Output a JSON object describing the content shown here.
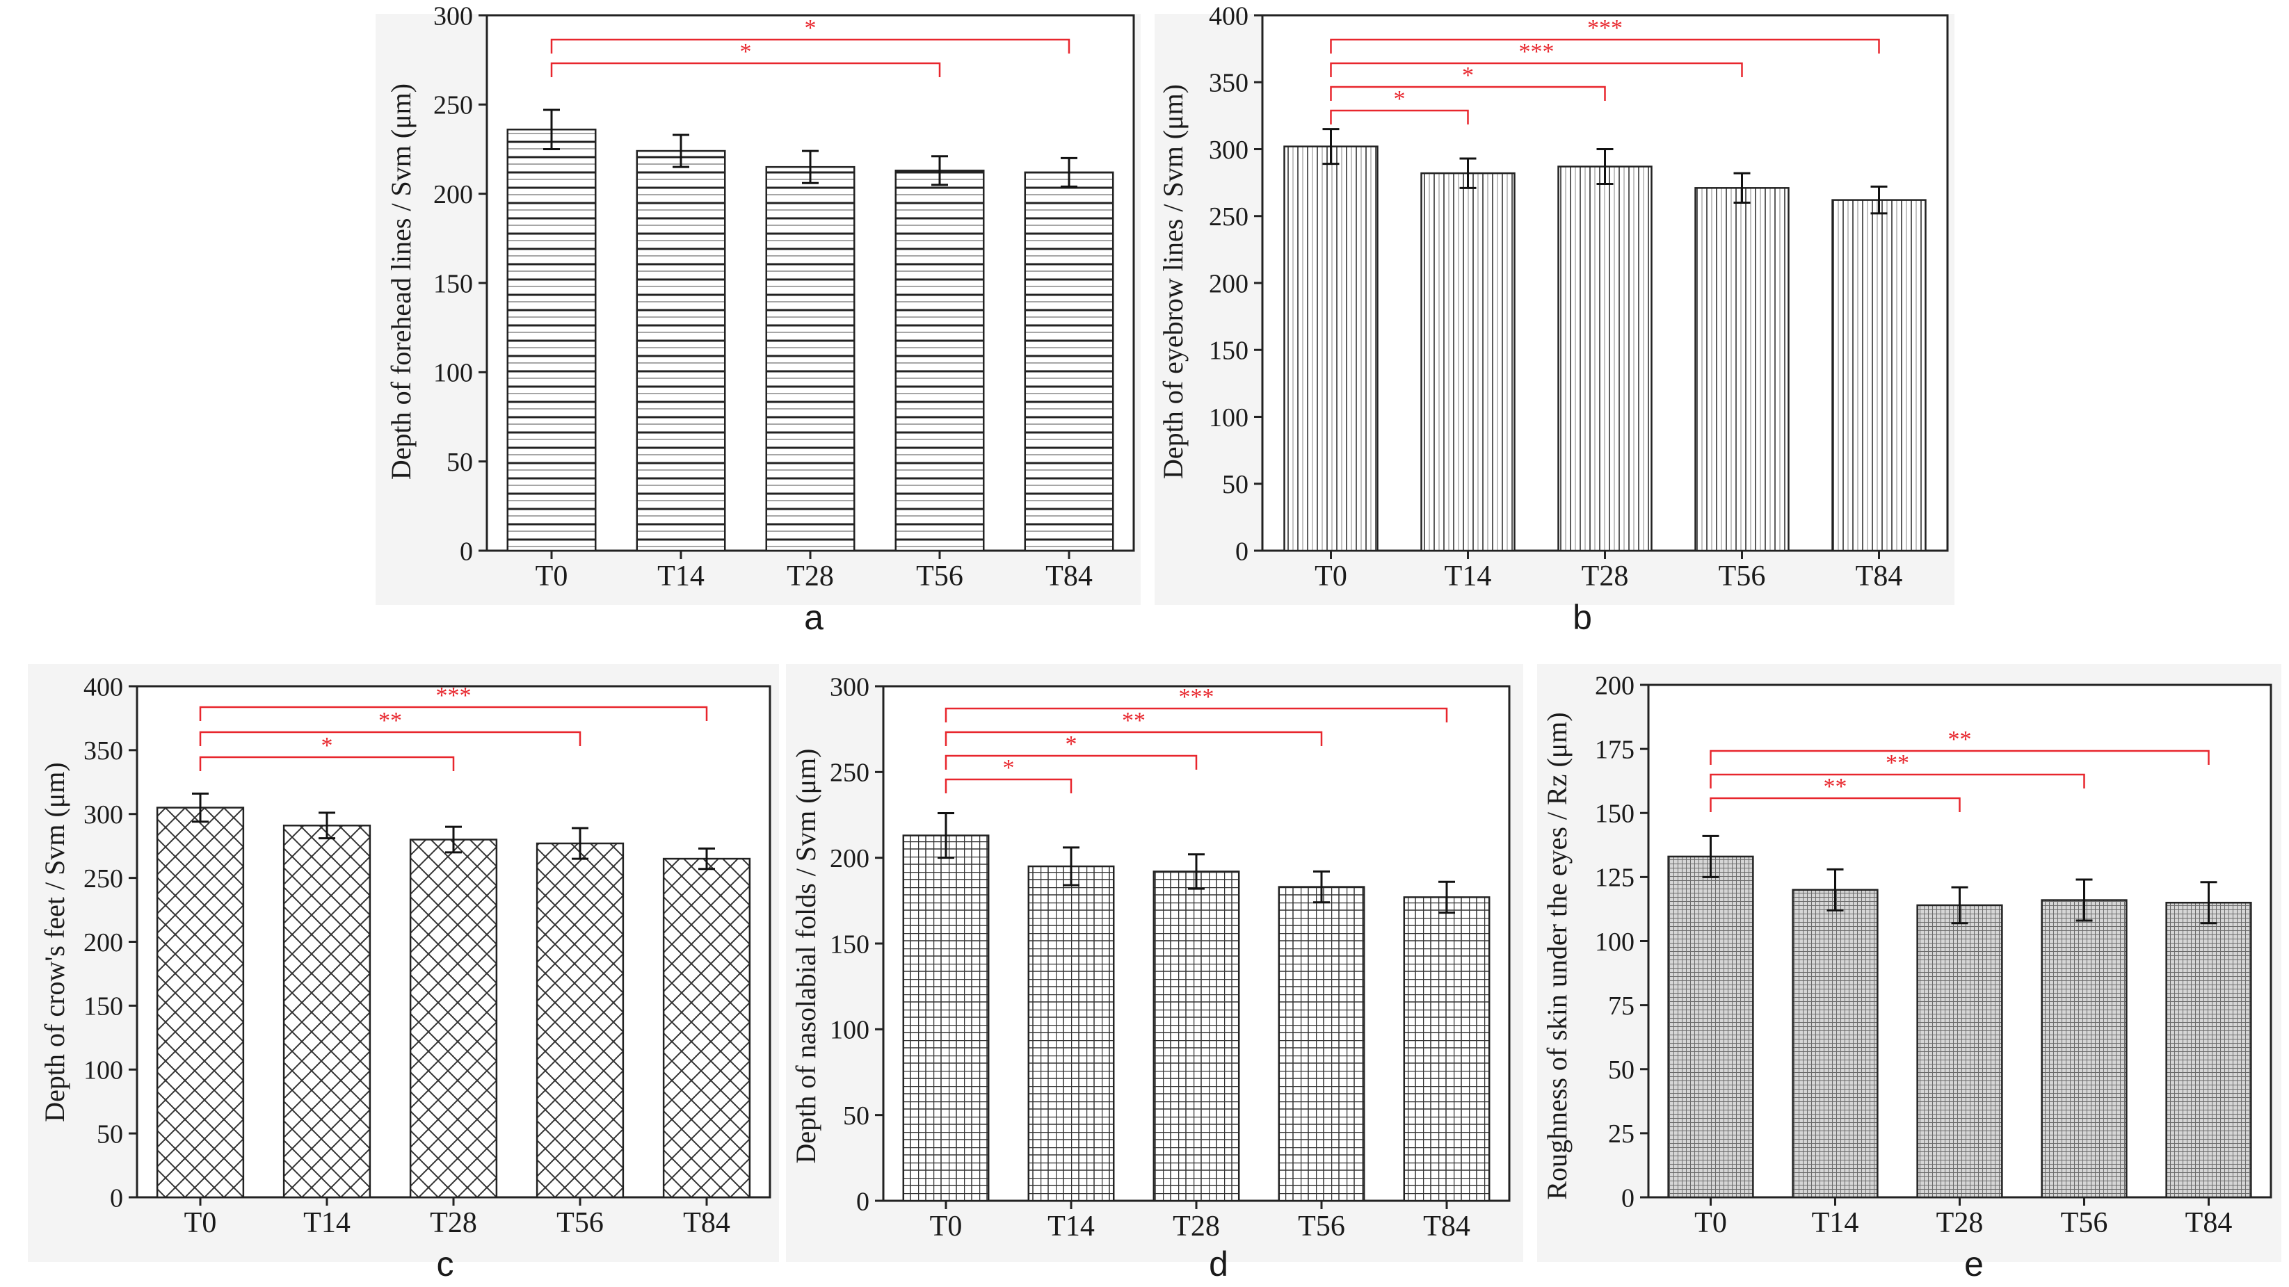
{
  "figure": {
    "background": "#ffffff",
    "panel_background": "#f4f4f4",
    "significance_color": "#e8262d",
    "bar_fill": "#ffffff",
    "bar_stroke": "#222222"
  },
  "chart_data": [
    {
      "panel": "a",
      "type": "bar",
      "pattern": "horizontal-lines",
      "categories": [
        "T0",
        "T14",
        "T28",
        "T56",
        "T84"
      ],
      "values": [
        236,
        224,
        215,
        213,
        212
      ],
      "errors": [
        11,
        9,
        9,
        8,
        8
      ],
      "ylabel": "Depth of forehead lines / Svm (μm)",
      "ylim": [
        0,
        300
      ],
      "yticks": [
        0,
        50,
        100,
        150,
        200,
        250,
        300
      ],
      "significance": [
        {
          "from": 0,
          "to": 3,
          "label": "*"
        },
        {
          "from": 0,
          "to": 4,
          "label": "*"
        }
      ]
    },
    {
      "panel": "b",
      "type": "bar",
      "pattern": "vertical-lines",
      "categories": [
        "T0",
        "T14",
        "T28",
        "T56",
        "T84"
      ],
      "values": [
        302,
        282,
        287,
        271,
        262
      ],
      "errors": [
        13,
        11,
        13,
        11,
        10
      ],
      "ylabel": "Depth of eyebrow lines / Svm (μm)",
      "ylim": [
        0,
        400
      ],
      "yticks": [
        0,
        50,
        100,
        150,
        200,
        250,
        300,
        350,
        400
      ],
      "significance": [
        {
          "from": 0,
          "to": 1,
          "label": "*"
        },
        {
          "from": 0,
          "to": 2,
          "label": "*"
        },
        {
          "from": 0,
          "to": 3,
          "label": "***"
        },
        {
          "from": 0,
          "to": 4,
          "label": "***"
        }
      ]
    },
    {
      "panel": "c",
      "type": "bar",
      "pattern": "crosshatch",
      "categories": [
        "T0",
        "T14",
        "T28",
        "T56",
        "T84"
      ],
      "values": [
        305,
        291,
        280,
        277,
        265
      ],
      "errors": [
        11,
        10,
        10,
        12,
        8
      ],
      "ylabel": "Depth of crow's feet / Svm (μm)",
      "ylim": [
        0,
        400
      ],
      "yticks": [
        0,
        50,
        100,
        150,
        200,
        250,
        300,
        350,
        400
      ],
      "significance": [
        {
          "from": 0,
          "to": 2,
          "label": "*"
        },
        {
          "from": 0,
          "to": 3,
          "label": "**"
        },
        {
          "from": 0,
          "to": 4,
          "label": "***"
        }
      ]
    },
    {
      "panel": "d",
      "type": "bar",
      "pattern": "grid",
      "categories": [
        "T0",
        "T14",
        "T28",
        "T56",
        "T84"
      ],
      "values": [
        213,
        195,
        192,
        183,
        177
      ],
      "errors": [
        13,
        11,
        10,
        9,
        9
      ],
      "ylabel": "Depth of nasolabial folds  / Svm (μm)",
      "ylim": [
        0,
        300
      ],
      "yticks": [
        0,
        50,
        100,
        150,
        200,
        250,
        300
      ],
      "significance": [
        {
          "from": 0,
          "to": 1,
          "label": "*"
        },
        {
          "from": 0,
          "to": 2,
          "label": "*"
        },
        {
          "from": 0,
          "to": 3,
          "label": "**"
        },
        {
          "from": 0,
          "to": 4,
          "label": "***"
        }
      ]
    },
    {
      "panel": "e",
      "type": "bar",
      "pattern": "fine-grid",
      "categories": [
        "T0",
        "T14",
        "T28",
        "T56",
        "T84"
      ],
      "values": [
        133,
        120,
        114,
        116,
        115
      ],
      "errors": [
        8,
        8,
        7,
        8,
        8
      ],
      "ylabel": "Roughness of skin under the eyes / Rz (μm)",
      "ylim": [
        0,
        200
      ],
      "yticks": [
        0,
        25,
        50,
        75,
        100,
        125,
        150,
        175,
        200
      ],
      "significance": [
        {
          "from": 0,
          "to": 2,
          "label": "**"
        },
        {
          "from": 0,
          "to": 3,
          "label": "**"
        },
        {
          "from": 0,
          "to": 4,
          "label": "**"
        }
      ]
    }
  ]
}
